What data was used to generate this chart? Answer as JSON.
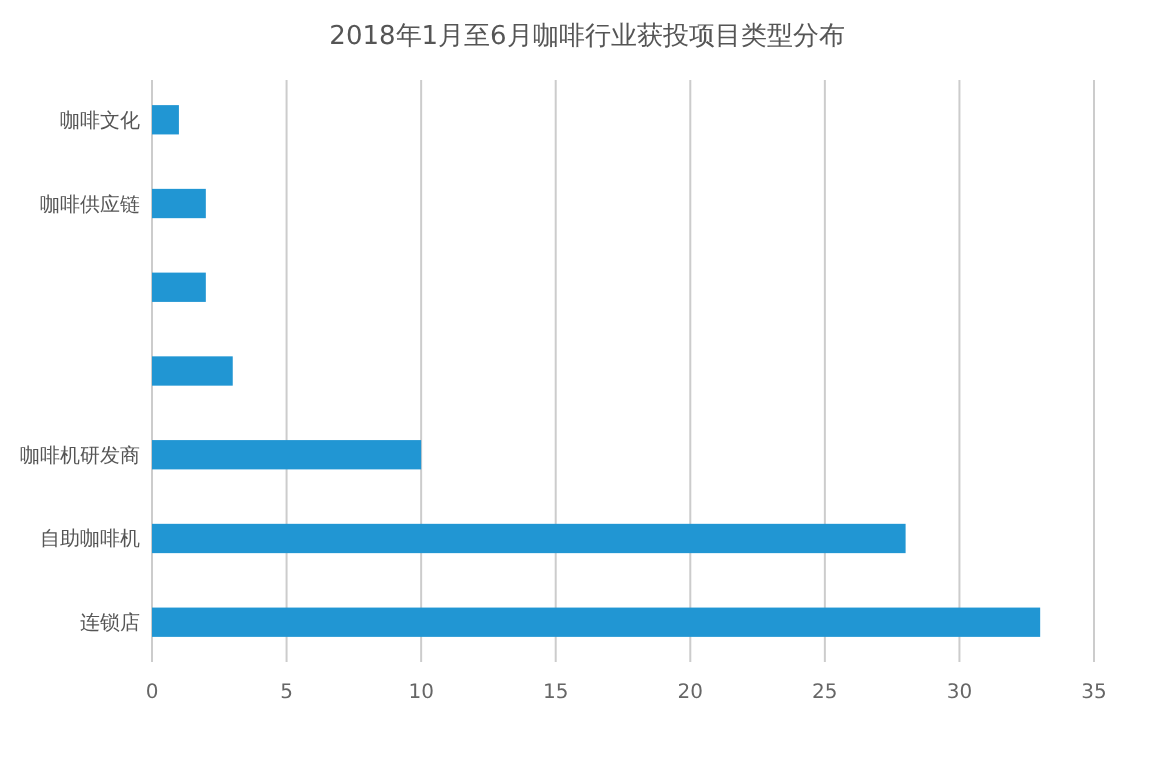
{
  "chart_data": {
    "type": "bar",
    "orientation": "horizontal",
    "title": "2018年1月至6月咖啡行业获投项目类型分布",
    "categories": [
      "咖啡文化",
      "咖啡供应链",
      null,
      null,
      "咖啡机研发商",
      "自助咖啡机",
      "连锁店"
    ],
    "values": [
      1,
      2,
      2,
      3,
      10,
      28,
      33
    ],
    "color": "#2196d3",
    "xlim": [
      0,
      35
    ],
    "xticks": [
      0,
      5,
      10,
      15,
      20,
      25,
      30,
      35
    ],
    "grid": "x"
  }
}
